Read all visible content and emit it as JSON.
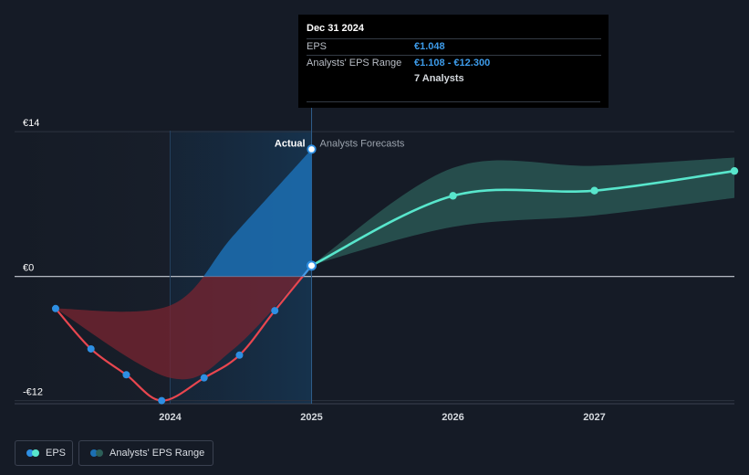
{
  "tooltip": {
    "date": "Dec 31 2024",
    "eps_label": "EPS",
    "eps_value": "€1.048",
    "range_label": "Analysts' EPS Range",
    "range_value": "€1.108 - €12.300",
    "analysts": "7 Analysts"
  },
  "labels": {
    "actual": "Actual",
    "forecast": "Analysts Forecasts"
  },
  "legend": {
    "eps": "EPS",
    "range": "Analysts' EPS Range"
  },
  "colors": {
    "background": "#151b26",
    "eps_line_past": "#e8464f",
    "eps_point_past": "#2e8fe3",
    "forecast_line": "#58e6cc",
    "forecast_band": "#2c5f59",
    "actual_band_blue": "#1c6fb3",
    "actual_band_red": "#7a2430"
  },
  "chart_data": {
    "type": "line",
    "y_ticks": [
      {
        "label": "€14",
        "value": 14
      },
      {
        "label": "€0",
        "value": 0
      },
      {
        "label": "-€12",
        "value": -12
      }
    ],
    "x_ticks": [
      {
        "label": "2024",
        "value": 2024.0
      },
      {
        "label": "2025",
        "value": 2025.0
      },
      {
        "label": "2026",
        "value": 2026.0
      },
      {
        "label": "2027",
        "value": 2027.0
      }
    ],
    "ylim": [
      -12.3,
      14.1
    ],
    "xlim": [
      2022.9,
      2027.99
    ],
    "actual_boundary": 2025.0,
    "highlight_start": 2024.0,
    "series": [
      {
        "name": "EPS",
        "kind": "actual",
        "points": [
          [
            2023.19,
            -3.1
          ],
          [
            2023.44,
            -7.0
          ],
          [
            2023.69,
            -9.5
          ],
          [
            2023.94,
            -12.0
          ],
          [
            2024.24,
            -9.8
          ],
          [
            2024.49,
            -7.6
          ],
          [
            2024.74,
            -3.3
          ],
          [
            2025.0,
            1.048
          ]
        ]
      },
      {
        "name": "EPS",
        "kind": "forecast",
        "points": [
          [
            2025.0,
            1.048
          ],
          [
            2026.0,
            7.8
          ],
          [
            2027.0,
            8.3
          ],
          [
            2027.99,
            10.2
          ]
        ]
      }
    ],
    "actual_range": {
      "upper": [
        [
          2023.19,
          -3.1
        ],
        [
          2024.0,
          -2.8
        ],
        [
          2024.45,
          4.0
        ],
        [
          2025.0,
          12.3
        ]
      ],
      "lower": [
        [
          2023.19,
          -3.1
        ],
        [
          2024.0,
          -9.8
        ],
        [
          2024.45,
          -7.0
        ],
        [
          2025.0,
          1.108
        ]
      ]
    },
    "range": {
      "upper": [
        [
          2025.0,
          1.108
        ],
        [
          2026.0,
          10.5
        ],
        [
          2027.0,
          10.7
        ],
        [
          2027.99,
          11.5
        ]
      ],
      "lower": [
        [
          2025.0,
          1.108
        ],
        [
          2026.0,
          4.8
        ],
        [
          2027.0,
          5.9
        ],
        [
          2027.99,
          7.6
        ]
      ]
    }
  }
}
